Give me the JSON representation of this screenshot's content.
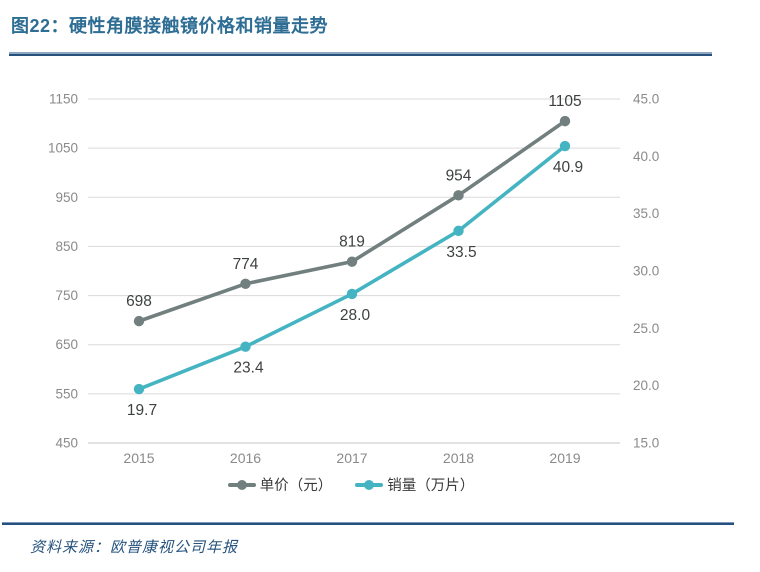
{
  "header": {
    "title": "图22：硬性角膜接触镜价格和销量走势"
  },
  "source": {
    "label": "资料来源：欧普康视公司年报"
  },
  "colors": {
    "title_blue": "#2e6d94",
    "divider_navy": "#24517e",
    "grid": "#dadada",
    "axis_text": "#8a8a8a",
    "data_label": "#3e4142",
    "price_series": "#71807e",
    "sales_series": "#45b4c2"
  },
  "chart_data": {
    "type": "line",
    "title": "图22：硬性角膜接触镜价格和销量走势",
    "categories": [
      "2015",
      "2016",
      "2017",
      "2018",
      "2019"
    ],
    "series": [
      {
        "name": "单价（元）",
        "axis": "left",
        "color": "#71807e",
        "values": [
          698,
          774,
          819,
          954,
          1105
        ],
        "labels": [
          "698",
          "774",
          "819",
          "954",
          "1105"
        ],
        "label_position": "above"
      },
      {
        "name": "销量（万片）",
        "axis": "right",
        "color": "#45b4c2",
        "values": [
          19.7,
          23.4,
          28.0,
          33.5,
          40.9
        ],
        "labels": [
          "19.7",
          "23.4",
          "28.0",
          "33.5",
          "40.9"
        ],
        "label_position": "below"
      }
    ],
    "left_axis": {
      "min": 450,
      "max": 1150,
      "step": 100,
      "ticks": [
        "450",
        "550",
        "650",
        "750",
        "850",
        "950",
        "1050",
        "1150"
      ]
    },
    "right_axis": {
      "min": 15,
      "max": 45,
      "step": 5,
      "ticks": [
        "15.0",
        "20.0",
        "25.0",
        "30.0",
        "35.0",
        "40.0",
        "45.0"
      ]
    },
    "grid": "horizontal",
    "legend_position": "bottom"
  }
}
